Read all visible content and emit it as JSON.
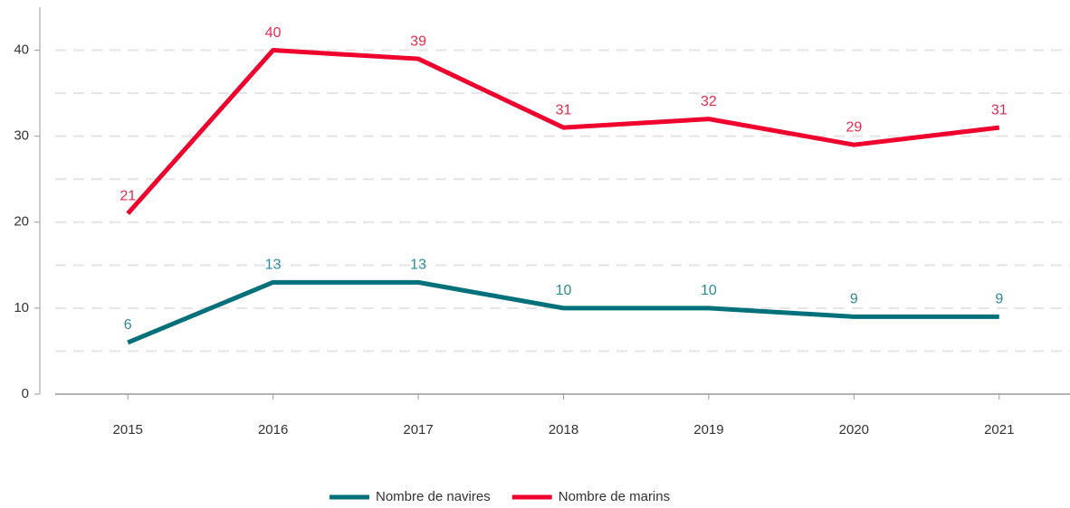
{
  "chart_data": {
    "type": "line",
    "categories": [
      "2015",
      "2016",
      "2017",
      "2018",
      "2019",
      "2020",
      "2021"
    ],
    "series": [
      {
        "name": "Nombre de navires",
        "color": "#00717a",
        "label_color": "#2b8a99",
        "values": [
          6,
          13,
          13,
          10,
          10,
          9,
          9
        ]
      },
      {
        "name": "Nombre de marins",
        "color": "#f0002d",
        "label_color": "#e82a4c",
        "values": [
          21,
          40,
          39,
          31,
          32,
          29,
          31
        ]
      }
    ],
    "ylim": [
      0,
      45
    ],
    "yticks": [
      0,
      10,
      20,
      30,
      40
    ],
    "grid": true,
    "legend": "bottom"
  }
}
